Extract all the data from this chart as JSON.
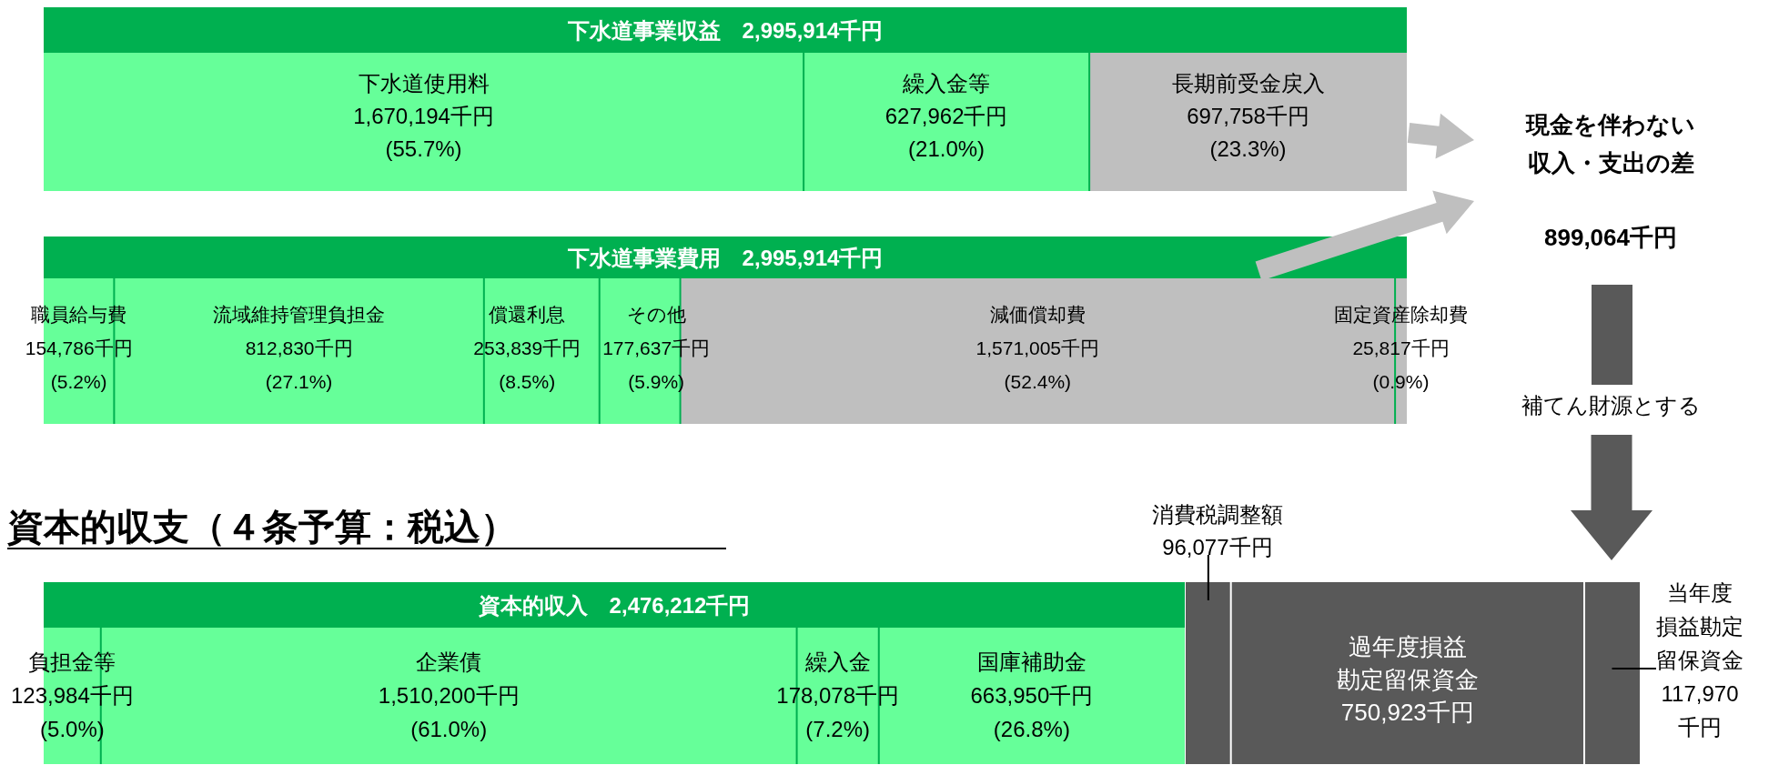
{
  "chart_data": [
    {
      "type": "bar",
      "orientation": "horizontal",
      "stacked": true,
      "title": "下水道事業収益　2,995,914千円",
      "categories": [
        null
      ],
      "series": [
        {
          "name": "下水道使用料",
          "color": "#66ff99",
          "values": [
            1670194
          ],
          "value_labels": [
            "1,670,194千円\n(55.7%)"
          ]
        },
        {
          "name": "繰入金等",
          "color": "#66ff99",
          "values": [
            627962
          ],
          "value_labels": [
            "627,962千円\n(21.0%)"
          ]
        },
        {
          "name": "長期前受金戻入",
          "color": "#bfbfbf",
          "values": [
            697758
          ],
          "value_labels": [
            "697,758千円\n(23.3%)"
          ]
        }
      ]
    },
    {
      "type": "bar",
      "orientation": "horizontal",
      "stacked": true,
      "title": "下水道事業費用　2,995,914千円",
      "categories": [
        null
      ],
      "series": [
        {
          "name": "職員給与費",
          "color": "#66ff99",
          "values": [
            154786
          ],
          "value_labels": [
            "154,786千円\n(5.2%)"
          ]
        },
        {
          "name": "流域維持管理負担金",
          "color": "#66ff99",
          "values": [
            812830
          ],
          "value_labels": [
            "812,830千円\n(27.1%)"
          ]
        },
        {
          "name": "償還利息",
          "color": "#66ff99",
          "values": [
            253839
          ],
          "value_labels": [
            "253,839千円\n(8.5%)"
          ]
        },
        {
          "name": "その他",
          "color": "#66ff99",
          "values": [
            177637
          ],
          "value_labels": [
            "177,637千円\n(5.9%)"
          ]
        },
        {
          "name": "減価償却費",
          "color": "#bfbfbf",
          "values": [
            1571005
          ],
          "value_labels": [
            "1,571,005千円\n(52.4%)"
          ]
        },
        {
          "name": "固定資産除却費",
          "color": "#bfbfbf",
          "values": [
            25817
          ],
          "value_labels": [
            "25,817千円\n(0.9%)"
          ]
        }
      ]
    },
    {
      "type": "bar",
      "orientation": "horizontal",
      "stacked": true,
      "subtitle": "資本的収支（４条予算：税込）",
      "title": "資本的収入　2,476,212千円",
      "categories": [
        null
      ],
      "series": [
        {
          "name": "負担金等",
          "color": "#66ff99",
          "values": [
            123984
          ],
          "value_labels": [
            "123,984千円\n(5.0%)"
          ]
        },
        {
          "name": "企業債",
          "color": "#66ff99",
          "values": [
            1510200
          ],
          "value_labels": [
            "1,510,200千円\n(61.0%)"
          ]
        },
        {
          "name": "繰入金",
          "color": "#66ff99",
          "values": [
            178078
          ],
          "value_labels": [
            "178,078千円\n(7.2%)"
          ]
        },
        {
          "name": "国庫補助金",
          "color": "#66ff99",
          "values": [
            663950
          ],
          "value_labels": [
            "663,950千円\n(26.8%)"
          ]
        }
      ]
    },
    {
      "type": "bar",
      "orientation": "horizontal",
      "stacked": true,
      "categories": [
        null
      ],
      "series": [
        {
          "name": "消費税調整額",
          "color": "#595959",
          "values": [
            96077
          ],
          "value_labels": [
            "96,077千円"
          ]
        },
        {
          "name": "過年度損益勘定留保資金",
          "color": "#595959",
          "values": [
            750923
          ],
          "value_labels": [
            "750,923千円"
          ]
        },
        {
          "name": "当年度損益勘定留保資金",
          "color": "#595959",
          "values": [
            117970
          ],
          "value_labels": [
            "117,970\n千円"
          ]
        }
      ]
    },
    {
      "type": "other",
      "title": "現金を伴わない収入・支出の差",
      "annotations": [
        "899,064千円",
        "補てん財源とする"
      ]
    }
  ]
}
